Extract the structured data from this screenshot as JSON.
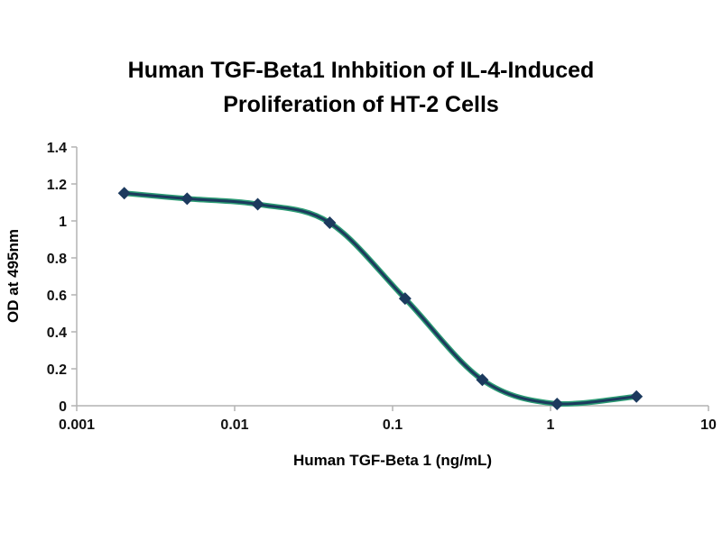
{
  "title": "Human TGF-Beta1 Inhbition of IL-4-Induced Proliferation of HT-2 Cells",
  "chart_data": {
    "type": "line",
    "title": "Human TGF-Beta1 Inhbition of IL-4-Induced Proliferation of HT-2 Cells",
    "xlabel": "Human TGF-Beta 1 (ng/mL)",
    "ylabel": "OD at 495nm",
    "x_scale": "log",
    "xlim": [
      0.001,
      10
    ],
    "ylim": [
      0,
      1.4
    ],
    "grid": false,
    "legend": "none",
    "x_ticks": [
      0.001,
      0.01,
      0.1,
      1,
      10
    ],
    "x_tick_labels": [
      "0.001",
      "0.01",
      "0.1",
      "1",
      "10"
    ],
    "y_ticks": [
      0,
      0.2,
      0.4,
      0.6,
      0.8,
      1,
      1.2,
      1.4
    ],
    "y_tick_labels": [
      "0",
      "0.2",
      "0.4",
      "0.6",
      "0.8",
      "1",
      "1.2",
      "1.4"
    ],
    "x": [
      0.002,
      0.005,
      0.014,
      0.04,
      0.12,
      0.37,
      1.1,
      3.5
    ],
    "series": [
      {
        "name": "OD at 495nm",
        "values": [
          1.15,
          1.12,
          1.09,
          0.99,
          0.58,
          0.14,
          0.01,
          0.05
        ]
      }
    ],
    "marker": "diamond",
    "colors": {
      "line_main": "#1c3a5e",
      "line_underlay": "#2c9c74",
      "marker_fill": "#1c3a5e",
      "axis": "#b3b3b3",
      "text": "#000000"
    }
  }
}
